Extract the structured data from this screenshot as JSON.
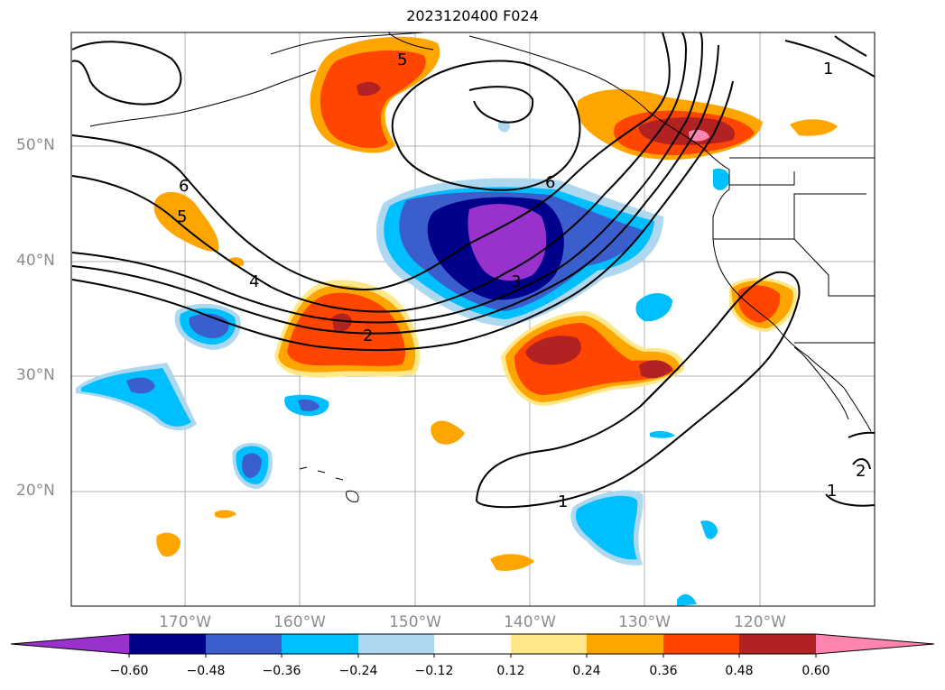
{
  "title": "2023120400 F024",
  "map": {
    "lat_labels": [
      "50°N",
      "40°N",
      "30°N",
      "20°N"
    ],
    "lon_labels": [
      "170°W",
      "160°W",
      "150°W",
      "140°W",
      "130°W",
      "120°W"
    ],
    "contour_labels": [
      "5",
      "6",
      "5",
      "4",
      "2",
      "3",
      "1",
      "1",
      "2",
      "6",
      "1"
    ]
  },
  "colorbar": {
    "colors": [
      "#9932cc",
      "#00008b",
      "#3a5fcd",
      "#00bfff",
      "#add8f0",
      "#ffffff",
      "#ffe88a",
      "#ffa500",
      "#ff4500",
      "#b22222",
      "#ff85b0"
    ],
    "ticks": [
      "−0.60",
      "−0.48",
      "−0.36",
      "−0.24",
      "−0.12",
      "0.12",
      "0.24",
      "0.36",
      "0.48",
      "0.60"
    ]
  }
}
